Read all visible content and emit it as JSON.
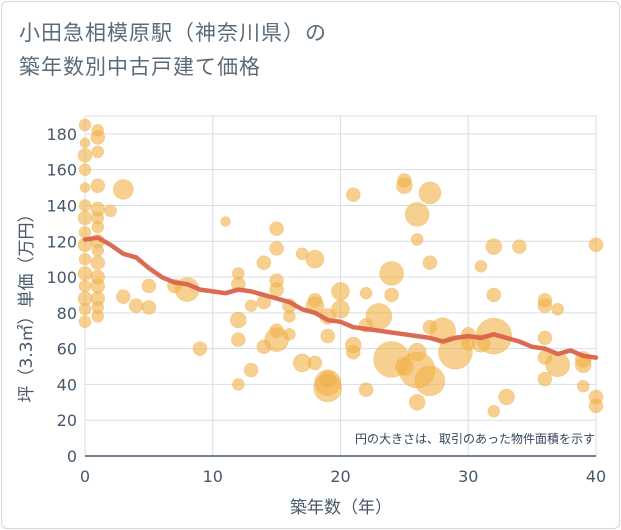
{
  "title_lines": [
    "小田急相模原駅（神奈川県）の",
    "築年数別中古戸建て価格"
  ],
  "chart_data": {
    "type": "scatter",
    "title": "小田急相模原駅（神奈川県）の築年数別中古戸建て価格",
    "xlabel": "築年数（年）",
    "ylabel": "坪（3.3㎡）単価（万円）",
    "xlim": [
      0,
      40
    ],
    "ylim": [
      0,
      190
    ],
    "xticks": [
      0,
      10,
      20,
      30,
      40
    ],
    "yticks": [
      0,
      20,
      40,
      60,
      80,
      100,
      120,
      140,
      160,
      180
    ],
    "grid": true,
    "annotation": "円の大きさは、取引のあった物件面積を示す",
    "colors": {
      "bubble": "#f2b24a",
      "trend": "#d9634a"
    },
    "points": [
      {
        "x": 0,
        "y": 185,
        "s": 6
      },
      {
        "x": 0,
        "y": 175,
        "s": 5
      },
      {
        "x": 0,
        "y": 168,
        "s": 7
      },
      {
        "x": 0,
        "y": 160,
        "s": 6
      },
      {
        "x": 0,
        "y": 150,
        "s": 5
      },
      {
        "x": 0,
        "y": 140,
        "s": 6
      },
      {
        "x": 0,
        "y": 133,
        "s": 7
      },
      {
        "x": 0,
        "y": 125,
        "s": 6
      },
      {
        "x": 0,
        "y": 118,
        "s": 7
      },
      {
        "x": 0,
        "y": 110,
        "s": 6
      },
      {
        "x": 0,
        "y": 102,
        "s": 7
      },
      {
        "x": 0,
        "y": 95,
        "s": 6
      },
      {
        "x": 0,
        "y": 88,
        "s": 7
      },
      {
        "x": 0,
        "y": 82,
        "s": 6
      },
      {
        "x": 0,
        "y": 75,
        "s": 6
      },
      {
        "x": 1,
        "y": 182,
        "s": 6
      },
      {
        "x": 1,
        "y": 178,
        "s": 7
      },
      {
        "x": 1,
        "y": 170,
        "s": 6
      },
      {
        "x": 1,
        "y": 151,
        "s": 7
      },
      {
        "x": 1,
        "y": 138,
        "s": 7
      },
      {
        "x": 1,
        "y": 133,
        "s": 6
      },
      {
        "x": 1,
        "y": 128,
        "s": 6
      },
      {
        "x": 1,
        "y": 120,
        "s": 7
      },
      {
        "x": 1,
        "y": 115,
        "s": 6
      },
      {
        "x": 1,
        "y": 108,
        "s": 7
      },
      {
        "x": 1,
        "y": 100,
        "s": 7
      },
      {
        "x": 1,
        "y": 95,
        "s": 7
      },
      {
        "x": 1,
        "y": 88,
        "s": 7
      },
      {
        "x": 1,
        "y": 83,
        "s": 6
      },
      {
        "x": 1,
        "y": 78,
        "s": 6
      },
      {
        "x": 2,
        "y": 137,
        "s": 6
      },
      {
        "x": 3,
        "y": 149,
        "s": 10
      },
      {
        "x": 3,
        "y": 89,
        "s": 7
      },
      {
        "x": 4,
        "y": 84,
        "s": 7
      },
      {
        "x": 5,
        "y": 95,
        "s": 7
      },
      {
        "x": 5,
        "y": 83,
        "s": 7
      },
      {
        "x": 7,
        "y": 95,
        "s": 7
      },
      {
        "x": 8,
        "y": 93,
        "s": 12
      },
      {
        "x": 9,
        "y": 60,
        "s": 7
      },
      {
        "x": 11,
        "y": 131,
        "s": 5
      },
      {
        "x": 12,
        "y": 102,
        "s": 6
      },
      {
        "x": 12,
        "y": 96,
        "s": 7
      },
      {
        "x": 12,
        "y": 76,
        "s": 8
      },
      {
        "x": 12,
        "y": 65,
        "s": 7
      },
      {
        "x": 12,
        "y": 40,
        "s": 6
      },
      {
        "x": 13,
        "y": 84,
        "s": 6
      },
      {
        "x": 13,
        "y": 48,
        "s": 7
      },
      {
        "x": 14,
        "y": 108,
        "s": 7
      },
      {
        "x": 14,
        "y": 86,
        "s": 7
      },
      {
        "x": 14,
        "y": 61,
        "s": 7
      },
      {
        "x": 15,
        "y": 127,
        "s": 7
      },
      {
        "x": 15,
        "y": 116,
        "s": 7
      },
      {
        "x": 15,
        "y": 98,
        "s": 7
      },
      {
        "x": 15,
        "y": 93,
        "s": 7
      },
      {
        "x": 15,
        "y": 70,
        "s": 7
      },
      {
        "x": 15,
        "y": 65,
        "s": 12
      },
      {
        "x": 16,
        "y": 84,
        "s": 7
      },
      {
        "x": 16,
        "y": 78,
        "s": 6
      },
      {
        "x": 16,
        "y": 68,
        "s": 6
      },
      {
        "x": 17,
        "y": 113,
        "s": 6
      },
      {
        "x": 17,
        "y": 52,
        "s": 9
      },
      {
        "x": 18,
        "y": 110,
        "s": 9
      },
      {
        "x": 18,
        "y": 87,
        "s": 7
      },
      {
        "x": 18,
        "y": 84,
        "s": 9
      },
      {
        "x": 18,
        "y": 52,
        "s": 7
      },
      {
        "x": 19,
        "y": 78,
        "s": 8
      },
      {
        "x": 19,
        "y": 67,
        "s": 7
      },
      {
        "x": 19,
        "y": 41,
        "s": 13
      },
      {
        "x": 19,
        "y": 38,
        "s": 14
      },
      {
        "x": 19,
        "y": 43,
        "s": 8
      },
      {
        "x": 20,
        "y": 92,
        "s": 9
      },
      {
        "x": 20,
        "y": 82,
        "s": 9
      },
      {
        "x": 21,
        "y": 146,
        "s": 7
      },
      {
        "x": 21,
        "y": 62,
        "s": 8
      },
      {
        "x": 21,
        "y": 58,
        "s": 7
      },
      {
        "x": 22,
        "y": 91,
        "s": 6
      },
      {
        "x": 22,
        "y": 73,
        "s": 7
      },
      {
        "x": 22,
        "y": 37,
        "s": 7
      },
      {
        "x": 23,
        "y": 78,
        "s": 13
      },
      {
        "x": 24,
        "y": 102,
        "s": 12
      },
      {
        "x": 24,
        "y": 90,
        "s": 7
      },
      {
        "x": 24,
        "y": 54,
        "s": 18
      },
      {
        "x": 25,
        "y": 154,
        "s": 7
      },
      {
        "x": 25,
        "y": 151,
        "s": 8
      },
      {
        "x": 25,
        "y": 50,
        "s": 9
      },
      {
        "x": 26,
        "y": 135,
        "s": 12
      },
      {
        "x": 26,
        "y": 121,
        "s": 6
      },
      {
        "x": 26,
        "y": 58,
        "s": 9
      },
      {
        "x": 26,
        "y": 48,
        "s": 18
      },
      {
        "x": 26,
        "y": 30,
        "s": 8
      },
      {
        "x": 27,
        "y": 147,
        "s": 11
      },
      {
        "x": 27,
        "y": 108,
        "s": 7
      },
      {
        "x": 27,
        "y": 72,
        "s": 7
      },
      {
        "x": 27,
        "y": 42,
        "s": 15
      },
      {
        "x": 28,
        "y": 70,
        "s": 13
      },
      {
        "x": 29,
        "y": 58,
        "s": 17
      },
      {
        "x": 30,
        "y": 68,
        "s": 7
      },
      {
        "x": 30,
        "y": 63,
        "s": 7
      },
      {
        "x": 31,
        "y": 106,
        "s": 6
      },
      {
        "x": 31,
        "y": 63,
        "s": 9
      },
      {
        "x": 32,
        "y": 117,
        "s": 8
      },
      {
        "x": 32,
        "y": 90,
        "s": 7
      },
      {
        "x": 32,
        "y": 67,
        "s": 18
      },
      {
        "x": 32,
        "y": 25,
        "s": 6
      },
      {
        "x": 33,
        "y": 33,
        "s": 8
      },
      {
        "x": 34,
        "y": 117,
        "s": 7
      },
      {
        "x": 36,
        "y": 87,
        "s": 7
      },
      {
        "x": 36,
        "y": 84,
        "s": 7
      },
      {
        "x": 36,
        "y": 66,
        "s": 7
      },
      {
        "x": 36,
        "y": 55,
        "s": 7
      },
      {
        "x": 36,
        "y": 43,
        "s": 7
      },
      {
        "x": 37,
        "y": 82,
        "s": 6
      },
      {
        "x": 37,
        "y": 51,
        "s": 12
      },
      {
        "x": 39,
        "y": 54,
        "s": 8
      },
      {
        "x": 39,
        "y": 51,
        "s": 8
      },
      {
        "x": 39,
        "y": 39,
        "s": 6
      },
      {
        "x": 40,
        "y": 118,
        "s": 7
      },
      {
        "x": 40,
        "y": 33,
        "s": 7
      },
      {
        "x": 40,
        "y": 28,
        "s": 7
      }
    ],
    "trend": {
      "x": [
        0,
        1,
        2,
        3,
        4,
        5,
        6,
        7,
        8,
        9,
        10,
        11,
        12,
        13,
        14,
        15,
        16,
        17,
        18,
        19,
        20,
        21,
        22,
        23,
        24,
        25,
        26,
        27,
        28,
        29,
        30,
        31,
        32,
        33,
        34,
        35,
        36,
        37,
        38,
        39,
        40
      ],
      "y": [
        121,
        122,
        118,
        113,
        111,
        105,
        100,
        97,
        96,
        93,
        92,
        91,
        93,
        92,
        90,
        88,
        86,
        82,
        80,
        76,
        75,
        72,
        71,
        70,
        69,
        68,
        67,
        66,
        64,
        66,
        67,
        66,
        68,
        66,
        64,
        61,
        60,
        57,
        59,
        56,
        55
      ]
    }
  }
}
